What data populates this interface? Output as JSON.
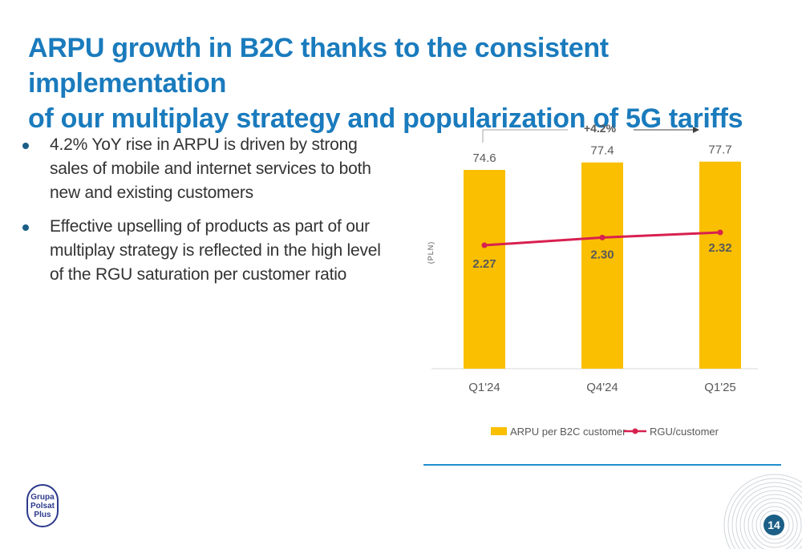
{
  "title": {
    "line1": "ARPU growth in B2C thanks to the consistent implementation",
    "line2": "of our multiplay strategy and popularization of 5G tariffs"
  },
  "bullets": [
    "4.2% YoY rise in ARPU is driven by strong sales of mobile and internet services to both new and existing customers",
    "Effective upselling of products as part of our multiplay strategy is reflected in the high level of the RGU saturation per customer ratio"
  ],
  "logo": {
    "text": "Grupa\nPolsat\nPlus"
  },
  "page_number": "14",
  "colors": {
    "accent": "#1a7bbd",
    "bar": "#f9bf00",
    "line": "#d8204f",
    "page_badge": "#1b5f86"
  },
  "chart_data": {
    "type": "bar",
    "categories": [
      "Q1'24",
      "Q4'24",
      "Q1'25"
    ],
    "series": [
      {
        "name": "ARPU per B2C customer",
        "type": "bar",
        "values": [
          74.6,
          77.4,
          77.7
        ],
        "labels": [
          "74.6",
          "77.4",
          "77.7"
        ],
        "color": "#f9bf00"
      },
      {
        "name": "RGU/customer",
        "type": "line",
        "values": [
          2.27,
          2.3,
          2.32
        ],
        "labels": [
          "2.27",
          "2.30",
          "2.32"
        ],
        "color": "#d8204f"
      }
    ],
    "ylabel": "(PLN)",
    "annotation": "+4.2%",
    "legend_position": "bottom",
    "grid": false
  }
}
